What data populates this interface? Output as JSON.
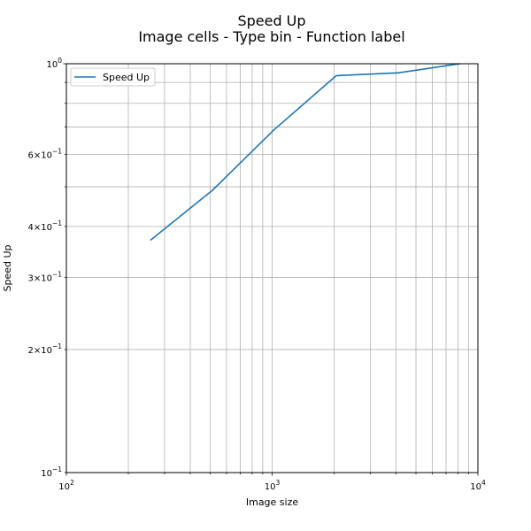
{
  "chart_data": {
    "type": "line",
    "title": "Speed Up",
    "subtitle": "Image cells - Type bin - Function label",
    "xlabel": "Image size",
    "ylabel": "Speed Up",
    "x_scale": "log",
    "y_scale": "log",
    "xlim": [
      100,
      10000
    ],
    "ylim": [
      0.1,
      1.0
    ],
    "grid": true,
    "legend_position": "top-left",
    "x_ticks": [
      {
        "value": 100,
        "mant": "10",
        "exp": "2"
      },
      {
        "value": 1000,
        "mant": "10",
        "exp": "3"
      },
      {
        "value": 10000,
        "mant": "10",
        "exp": "4"
      }
    ],
    "y_ticks": [
      {
        "value": 0.1,
        "mant": "10",
        "exp": "−1"
      },
      {
        "value": 0.2,
        "mant": "2×10",
        "exp": "−1"
      },
      {
        "value": 0.3,
        "mant": "3×10",
        "exp": "−1"
      },
      {
        "value": 0.4,
        "mant": "4×10",
        "exp": "−1"
      },
      {
        "value": 0.6,
        "mant": "6×10",
        "exp": "−1"
      },
      {
        "value": 1.0,
        "mant": "10",
        "exp": "0"
      }
    ],
    "series": [
      {
        "name": "Speed Up",
        "color": "#1f77b4",
        "x": [
          256,
          512,
          1024,
          2048,
          4096,
          8192
        ],
        "y": [
          0.37,
          0.49,
          0.69,
          0.935,
          0.95,
          1.0
        ]
      }
    ]
  }
}
